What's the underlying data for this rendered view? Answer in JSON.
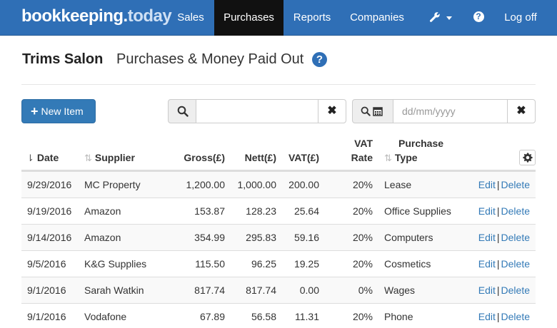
{
  "brand": {
    "part1": "bookkeeping",
    "part2": ".",
    "part3": "today"
  },
  "nav": {
    "sales": "Sales",
    "purchases": "Purchases",
    "reports": "Reports",
    "companies": "Companies",
    "help": "?",
    "logoff": "Log off"
  },
  "page": {
    "company": "Trims Salon",
    "title": "Purchases & Money Paid Out",
    "help": "?"
  },
  "toolbar": {
    "new_item": "New Item",
    "search_placeholder": "",
    "date_placeholder": "dd/mm/yyyy",
    "clear": "✖"
  },
  "table": {
    "headers": {
      "date": "Date",
      "supplier": "Supplier",
      "gross": "Gross(£)",
      "nett": "Nett(£)",
      "vat": "VAT(£)",
      "vat_rate_1": "VAT",
      "vat_rate_2": "Rate",
      "type_1": "Purchase",
      "type_2": "Type"
    },
    "edit_label": "Edit",
    "delete_label": "Delete",
    "separator": "|",
    "rows": [
      {
        "date": "9/29/2016",
        "supplier": "MC Property",
        "gross": "1,200.00",
        "nett": "1,000.00",
        "vat": "200.00",
        "rate": "20%",
        "type": "Lease"
      },
      {
        "date": "9/19/2016",
        "supplier": "Amazon",
        "gross": "153.87",
        "nett": "128.23",
        "vat": "25.64",
        "rate": "20%",
        "type": "Office Supplies"
      },
      {
        "date": "9/14/2016",
        "supplier": "Amazon",
        "gross": "354.99",
        "nett": "295.83",
        "vat": "59.16",
        "rate": "20%",
        "type": "Computers"
      },
      {
        "date": "9/5/2016",
        "supplier": "K&G Supplies",
        "gross": "115.50",
        "nett": "96.25",
        "vat": "19.25",
        "rate": "20%",
        "type": "Cosmetics"
      },
      {
        "date": "9/1/2016",
        "supplier": "Sarah Watkin",
        "gross": "817.74",
        "nett": "817.74",
        "vat": "0.00",
        "rate": "0%",
        "type": "Wages"
      },
      {
        "date": "9/1/2016",
        "supplier": "Vodafone",
        "gross": "67.89",
        "nett": "56.58",
        "vat": "11.31",
        "rate": "20%",
        "type": "Phone"
      }
    ]
  },
  "icons": {
    "tools": "wrench-icon",
    "search": "search-icon",
    "calendar": "calendar-icon",
    "settings": "gear-icon",
    "sort": "sort-icon"
  },
  "colors": {
    "navbar": "#2f6fb6",
    "active_nav": "#111111",
    "primary_button": "#337ab7",
    "link": "#337ab7"
  }
}
